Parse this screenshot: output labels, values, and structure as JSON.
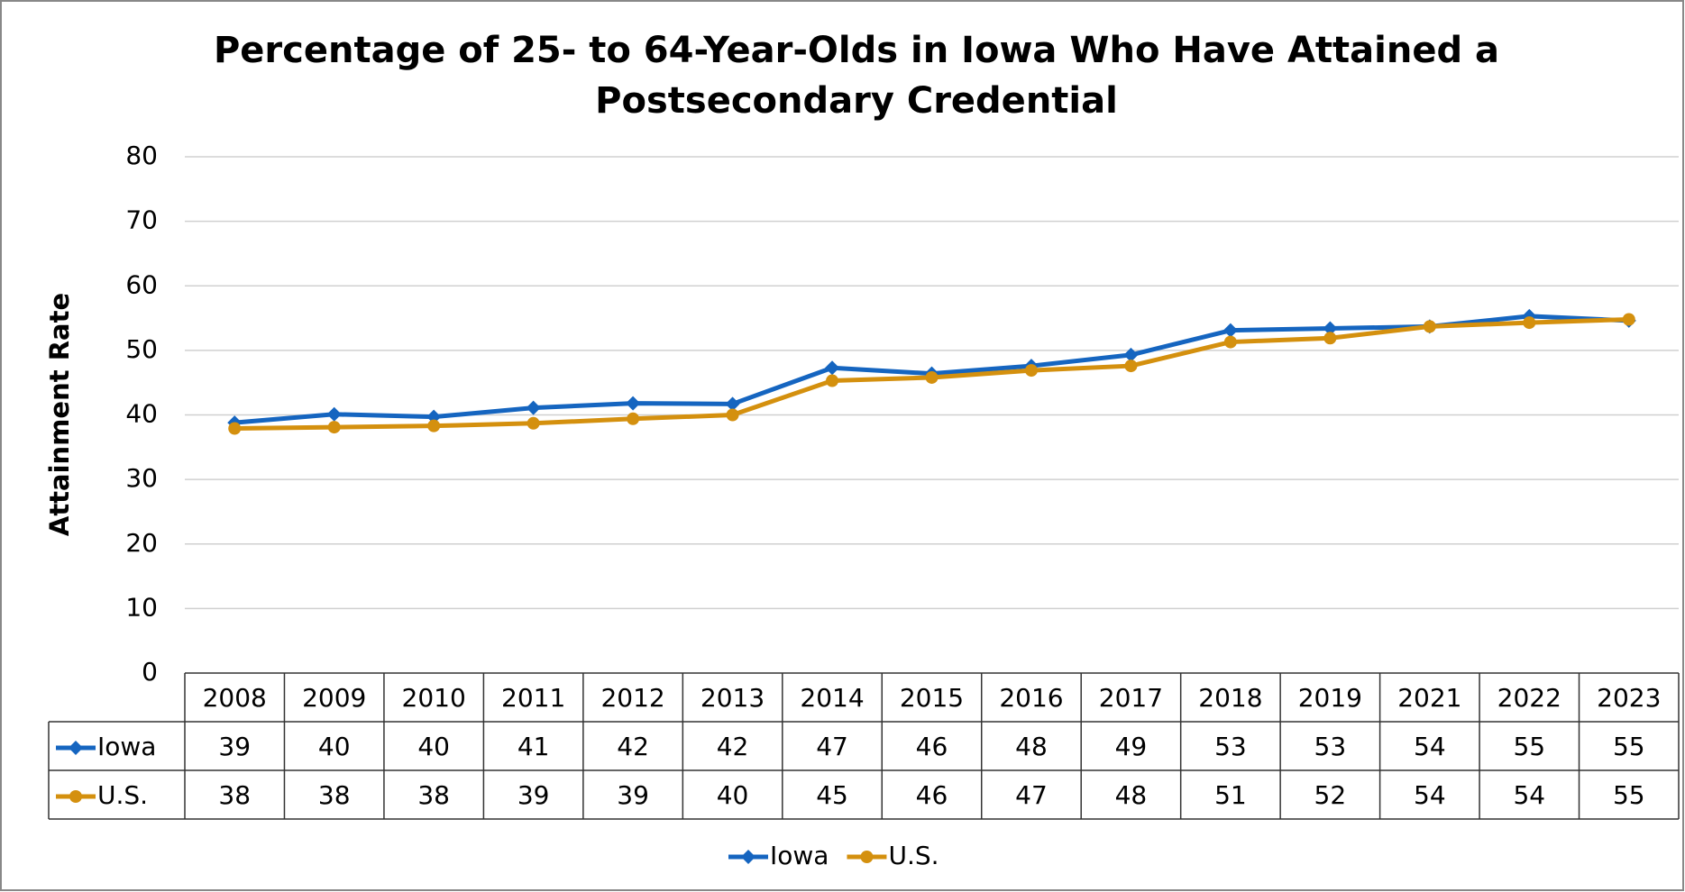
{
  "chart_data": {
    "type": "line",
    "title": "Percentage of 25- to 64-Year-Olds in Iowa Who Have Attained a Postsecondary Credential",
    "y_label": "Attainment Rate",
    "categories": [
      "2008",
      "2009",
      "2010",
      "2011",
      "2012",
      "2013",
      "2014",
      "2015",
      "2016",
      "2017",
      "2018",
      "2019",
      "2021",
      "2022",
      "2023"
    ],
    "series": [
      {
        "name": "Iowa",
        "color": "#1565c0",
        "marker": "diamond",
        "values": [
          38.8,
          40.1,
          39.7,
          41.1,
          41.8,
          41.7,
          47.3,
          46.4,
          47.6,
          49.3,
          53.1,
          53.4,
          53.7,
          55.3,
          54.6
        ],
        "value_labels": [
          "39",
          "40",
          "40",
          "41",
          "42",
          "42",
          "47",
          "46",
          "48",
          "49",
          "53",
          "53",
          "54",
          "55",
          "55"
        ]
      },
      {
        "name": "U.S.",
        "color": "#d4900e",
        "marker": "circle",
        "values": [
          37.9,
          38.1,
          38.3,
          38.7,
          39.4,
          40.0,
          45.3,
          45.8,
          46.9,
          47.6,
          51.3,
          51.9,
          53.7,
          54.3,
          54.8
        ],
        "value_labels": [
          "38",
          "38",
          "38",
          "39",
          "39",
          "40",
          "45",
          "46",
          "47",
          "48",
          "51",
          "52",
          "54",
          "54",
          "55"
        ]
      }
    ],
    "ylim": [
      0,
      80
    ],
    "yticks": [
      0,
      10,
      20,
      30,
      40,
      50,
      60,
      70,
      80
    ],
    "grid": true,
    "legend": "bottom",
    "data_table": true
  }
}
